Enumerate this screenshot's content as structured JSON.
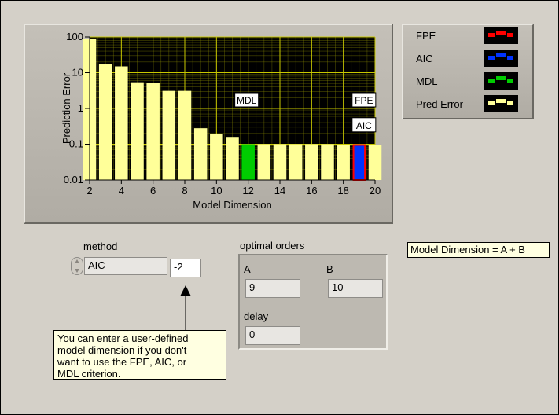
{
  "chart_data": {
    "type": "bar",
    "scale": "log",
    "xlabel": "Model Dimension",
    "ylabel": "Prediction Error",
    "xlim": [
      2,
      20
    ],
    "ylim": [
      0.01,
      100
    ],
    "x_ticks": [
      "2",
      "4",
      "6",
      "8",
      "10",
      "12",
      "14",
      "16",
      "18",
      "20"
    ],
    "y_ticks": [
      "100",
      "10",
      "1",
      "0.1",
      "0.01"
    ],
    "grid": true,
    "x": [
      2,
      3,
      4,
      5,
      6,
      7,
      8,
      9,
      10,
      11,
      12,
      13,
      14,
      15,
      16,
      17,
      18,
      19,
      20
    ],
    "values": [
      90,
      17,
      15,
      5.4,
      5.1,
      3.1,
      3.1,
      0.28,
      0.19,
      0.16,
      0.1,
      0.1,
      0.1,
      0.1,
      0.1,
      0.1,
      0.095,
      0.095,
      0.095
    ],
    "highlights": [
      {
        "x": 12,
        "series": "MDL"
      },
      {
        "x": 19,
        "series": "FPE"
      },
      {
        "x": 19,
        "series": "AIC"
      }
    ],
    "annotations": [
      "MDL",
      "FPE",
      "AIC"
    ],
    "series": [
      {
        "name": "FPE",
        "color": "#ff0000"
      },
      {
        "name": "AIC",
        "color": "#0033ff"
      },
      {
        "name": "MDL",
        "color": "#00cc00"
      },
      {
        "name": "Pred Error",
        "color": "#ffff99"
      }
    ]
  },
  "legend": {
    "items": [
      {
        "label": "FPE",
        "color": "#ff0000"
      },
      {
        "label": "AIC",
        "color": "#0033ff"
      },
      {
        "label": "MDL",
        "color": "#00cc00"
      },
      {
        "label": "Pred Error",
        "color": "#ffff99"
      }
    ]
  },
  "method": {
    "label": "method",
    "value": "AIC",
    "user_dimension": "-2"
  },
  "optimal_orders": {
    "label": "optimal orders",
    "a_label": "A",
    "a_value": "9",
    "b_label": "B",
    "b_value": "10",
    "delay_label": "delay",
    "delay_value": "0"
  },
  "tooltip": "You can enter a user-defined\nmodel dimension if you don't\nwant to use the FPE, AIC, or\nMDL criterion.",
  "formula": "Model Dimension = A + B",
  "colors": {
    "plot_bg": "#000000",
    "grid": "#8c8c00",
    "bar": "#ffff99",
    "mdl": "#00cc00",
    "fpe": "#ff0000",
    "aic": "#0033ff"
  }
}
